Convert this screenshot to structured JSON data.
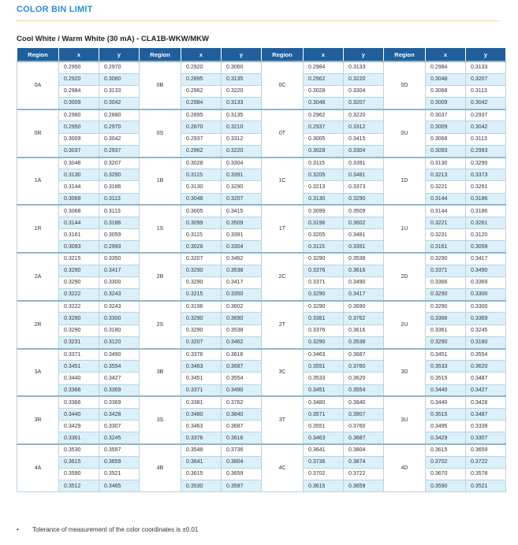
{
  "header": {
    "title": "COLOR BIN LIMIT",
    "subtitle": "Cool White / Warm White (30 mA) - CLA1B-WKW/MKW"
  },
  "table": {
    "columns": [
      "Region",
      "x",
      "y",
      "Region",
      "x",
      "y",
      "Region",
      "x",
      "y",
      "Region",
      "x",
      "y"
    ],
    "blocks": [
      {
        "regions": [
          "0A",
          "0B",
          "0C",
          "0D"
        ],
        "rows": [
          [
            "0.2950",
            "0.2970",
            "0.2920",
            "0.3060",
            "0.2984",
            "0.3133",
            "0.2984",
            "0.3133"
          ],
          [
            "0.2920",
            "0.3060",
            "0.2895",
            "0.3135",
            "0.2962",
            "0.3220",
            "0.3048",
            "0.3207"
          ],
          [
            "0.2984",
            "0.3133",
            "0.2962",
            "0.3220",
            "0.3028",
            "0.3304",
            "0.3068",
            "0.3113"
          ],
          [
            "0.3009",
            "0.3042",
            "0.2984",
            "0.3133",
            "0.3048",
            "0.3207",
            "0.3009",
            "0.3042"
          ]
        ]
      },
      {
        "regions": [
          "0R",
          "0S",
          "0T",
          "0U"
        ],
        "rows": [
          [
            "0.2980",
            "0.2880",
            "0.2895",
            "0.3135",
            "0.2962",
            "0.3220",
            "0.3037",
            "0.2937"
          ],
          [
            "0.2950",
            "0.2970",
            "0.2870",
            "0.3210",
            "0.2937",
            "0.3312",
            "0.3009",
            "0.3042"
          ],
          [
            "0.3009",
            "0.3042",
            "0.2937",
            "0.3312",
            "0.3005",
            "0.3415",
            "0.3068",
            "0.3113"
          ],
          [
            "0.3037",
            "0.2937",
            "0.2962",
            "0.3220",
            "0.3028",
            "0.3304",
            "0.3093",
            "0.2993"
          ]
        ]
      },
      {
        "regions": [
          "1A",
          "1B",
          "1C",
          "1D"
        ],
        "rows": [
          [
            "0.3048",
            "0.3207",
            "0.3028",
            "0.3304",
            "0.3115",
            "0.3391",
            "0.3130",
            "0.3290"
          ],
          [
            "0.3130",
            "0.3290",
            "0.3115",
            "0.3391",
            "0.3205",
            "0.3481",
            "0.3213",
            "0.3373"
          ],
          [
            "0.3144",
            "0.3186",
            "0.3130",
            "0.3290",
            "0.3213",
            "0.3373",
            "0.3221",
            "0.3261"
          ],
          [
            "0.3068",
            "0.3113",
            "0.3048",
            "0.3207",
            "0.3130",
            "0.3290",
            "0.3144",
            "0.3186"
          ]
        ]
      },
      {
        "regions": [
          "1R",
          "1S",
          "1T",
          "1U"
        ],
        "rows": [
          [
            "0.3068",
            "0.3113",
            "0.3005",
            "0.3415",
            "0.3099",
            "0.3509",
            "0.3144",
            "0.3186"
          ],
          [
            "0.3144",
            "0.3186",
            "0.3099",
            "0.3509",
            "0.3196",
            "0.3602",
            "0.3221",
            "0.3261"
          ],
          [
            "0.3161",
            "0.3059",
            "0.3115",
            "0.3391",
            "0.3205",
            "0.3481",
            "0.3231",
            "0.3120"
          ],
          [
            "0.3093",
            "0.2993",
            "0.3028",
            "0.3304",
            "0.3115",
            "0.3391",
            "0.3161",
            "0.3059"
          ]
        ]
      },
      {
        "regions": [
          "2A",
          "2B",
          "2C",
          "2D"
        ],
        "rows": [
          [
            "0.3215",
            "0.3350",
            "0.3207",
            "0.3462",
            "0.3290",
            "0.3538",
            "0.3290",
            "0.3417"
          ],
          [
            "0.3290",
            "0.3417",
            "0.3290",
            "0.3538",
            "0.3376",
            "0.3616",
            "0.3371",
            "0.3490"
          ],
          [
            "0.3290",
            "0.3300",
            "0.3290",
            "0.3417",
            "0.3371",
            "0.3490",
            "0.3366",
            "0.3369"
          ],
          [
            "0.3222",
            "0.3243",
            "0.3215",
            "0.3350",
            "0.3290",
            "0.3417",
            "0.3290",
            "0.3300"
          ]
        ]
      },
      {
        "regions": [
          "2R",
          "2S",
          "2T",
          "2U"
        ],
        "rows": [
          [
            "0.3222",
            "0.3243",
            "0.3196",
            "0.3602",
            "0.3290",
            "0.3690",
            "0.3290",
            "0.3300"
          ],
          [
            "0.3290",
            "0.3300",
            "0.3290",
            "0.3690",
            "0.3381",
            "0.3762",
            "0.3366",
            "0.3369"
          ],
          [
            "0.3290",
            "0.3180",
            "0.3290",
            "0.3538",
            "0.3376",
            "0.3616",
            "0.3361",
            "0.3245"
          ],
          [
            "0.3231",
            "0.3120",
            "0.3207",
            "0.3462",
            "0.3290",
            "0.3538",
            "0.3290",
            "0.3180"
          ]
        ]
      },
      {
        "regions": [
          "3A",
          "3B",
          "3C",
          "3D"
        ],
        "rows": [
          [
            "0.3371",
            "0.3490",
            "0.3376",
            "0.3616",
            "0.3463",
            "0.3687",
            "0.3451",
            "0.3554"
          ],
          [
            "0.3451",
            "0.3554",
            "0.3463",
            "0.3687",
            "0.3551",
            "0.3760",
            "0.3533",
            "0.3620"
          ],
          [
            "0.3440",
            "0.3427",
            "0.3451",
            "0.3554",
            "0.3533",
            "0.3620",
            "0.3515",
            "0.3487"
          ],
          [
            "0.3366",
            "0.3369",
            "0.3371",
            "0.3490",
            "0.3451",
            "0.3554",
            "0.3440",
            "0.3427"
          ]
        ]
      },
      {
        "regions": [
          "3R",
          "3S",
          "3T",
          "3U"
        ],
        "rows": [
          [
            "0.3366",
            "0.3369",
            "0.3381",
            "0.3762",
            "0.3480",
            "0.3840",
            "0.3440",
            "0.3428"
          ],
          [
            "0.3440",
            "0.3428",
            "0.3480",
            "0.3840",
            "0.3571",
            "0.3907",
            "0.3515",
            "0.3487"
          ],
          [
            "0.3429",
            "0.3307",
            "0.3463",
            "0.3687",
            "0.3551",
            "0.3760",
            "0.3495",
            "0.3339"
          ],
          [
            "0.3361",
            "0.3245",
            "0.3376",
            "0.3616",
            "0.3463",
            "0.3687",
            "0.3429",
            "0.3307"
          ]
        ]
      },
      {
        "regions": [
          "4A",
          "4B",
          "4C",
          "4D"
        ],
        "rows": [
          [
            "0.3530",
            "0.3597",
            "0.3548",
            "0.3736",
            "0.3641",
            "0.3804",
            "0.3615",
            "0.3659"
          ],
          [
            "0.3615",
            "0.3659",
            "0.3641",
            "0.3804",
            "0.3736",
            "0.3874",
            "0.3702",
            "0.3722"
          ],
          [
            "0.3590",
            "0.3521",
            "0.3615",
            "0.3659",
            "0.3702",
            "0.3722",
            "0.3670",
            "0.3578"
          ],
          [
            "0.3512",
            "0.3465",
            "0.3530",
            "0.3597",
            "0.3615",
            "0.3659",
            "0.3590",
            "0.3521"
          ]
        ]
      }
    ]
  },
  "footnote": "Tolerance of measurement of the color coordinates is ±0.01"
}
